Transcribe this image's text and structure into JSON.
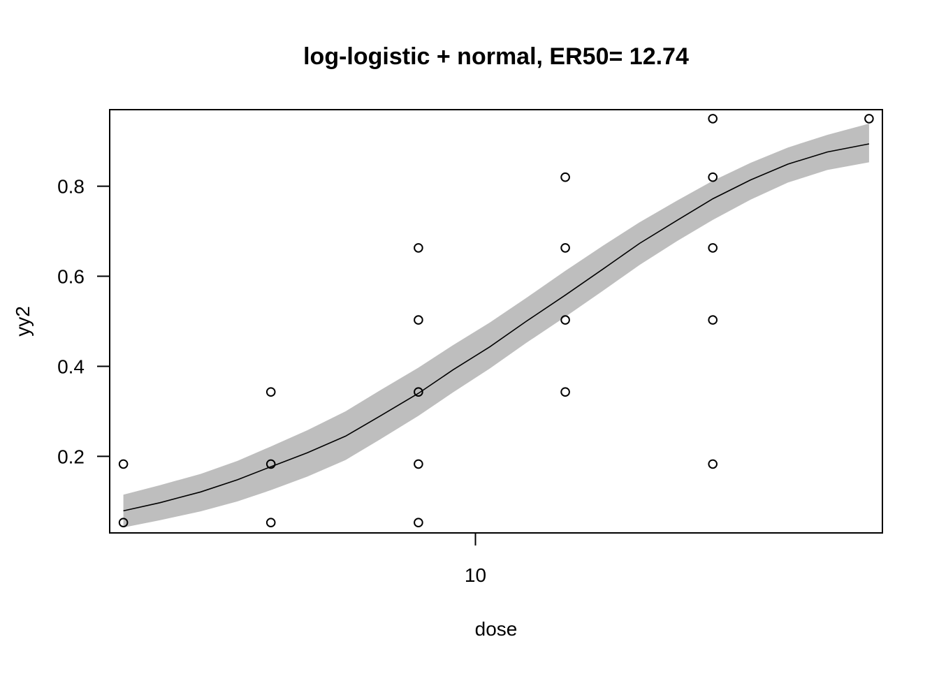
{
  "chart_data": {
    "type": "scatter",
    "title": "log-logistic + normal, ER50= 12.74",
    "xlabel": "dose",
    "ylabel": "yy2",
    "x_scale": "log",
    "xlim": [
      3.66,
      30.6
    ],
    "ylim": [
      0.03,
      0.97
    ],
    "x_ticks": [
      10
    ],
    "x_tick_labels": [
      "10"
    ],
    "y_ticks": [
      0.2,
      0.4,
      0.6,
      0.8
    ],
    "y_tick_labels": [
      "0.2",
      "0.4",
      "0.6",
      "0.8"
    ],
    "grid": false,
    "legend": "none",
    "colors": {
      "points": "#000000",
      "fit_line": "#000000",
      "band": "#bebebe",
      "frame": "#000000"
    },
    "points": [
      {
        "x": 3.8,
        "y": 0.183
      },
      {
        "x": 3.8,
        "y": 0.053
      },
      {
        "x": 5.7,
        "y": 0.343
      },
      {
        "x": 5.7,
        "y": 0.183
      },
      {
        "x": 5.7,
        "y": 0.053
      },
      {
        "x": 8.55,
        "y": 0.663
      },
      {
        "x": 8.55,
        "y": 0.503
      },
      {
        "x": 8.55,
        "y": 0.343
      },
      {
        "x": 8.55,
        "y": 0.183
      },
      {
        "x": 8.55,
        "y": 0.053
      },
      {
        "x": 12.8,
        "y": 0.82
      },
      {
        "x": 12.8,
        "y": 0.663
      },
      {
        "x": 12.8,
        "y": 0.503
      },
      {
        "x": 12.8,
        "y": 0.343
      },
      {
        "x": 19.2,
        "y": 0.95
      },
      {
        "x": 19.2,
        "y": 0.82
      },
      {
        "x": 19.2,
        "y": 0.663
      },
      {
        "x": 19.2,
        "y": 0.503
      },
      {
        "x": 19.2,
        "y": 0.183
      },
      {
        "x": 29.5,
        "y": 0.95
      }
    ],
    "fit": {
      "name": "log-logistic + normal",
      "x": [
        3.8,
        4.2,
        4.7,
        5.2,
        5.7,
        6.3,
        7.0,
        7.7,
        8.55,
        9.4,
        10.4,
        11.5,
        12.8,
        14.2,
        15.7,
        17.4,
        19.2,
        21.3,
        23.6,
        26.3,
        29.5
      ],
      "y": [
        0.079,
        0.097,
        0.121,
        0.148,
        0.177,
        0.208,
        0.245,
        0.29,
        0.34,
        0.392,
        0.443,
        0.5,
        0.558,
        0.616,
        0.673,
        0.724,
        0.772,
        0.814,
        0.849,
        0.876,
        0.894
      ],
      "lower": [
        0.042,
        0.058,
        0.078,
        0.1,
        0.125,
        0.155,
        0.192,
        0.238,
        0.29,
        0.342,
        0.395,
        0.452,
        0.51,
        0.568,
        0.625,
        0.678,
        0.725,
        0.77,
        0.808,
        0.836,
        0.853
      ],
      "upper": [
        0.115,
        0.136,
        0.161,
        0.19,
        0.222,
        0.258,
        0.3,
        0.347,
        0.397,
        0.447,
        0.497,
        0.552,
        0.612,
        0.668,
        0.72,
        0.768,
        0.812,
        0.852,
        0.886,
        0.914,
        0.939
      ]
    }
  }
}
